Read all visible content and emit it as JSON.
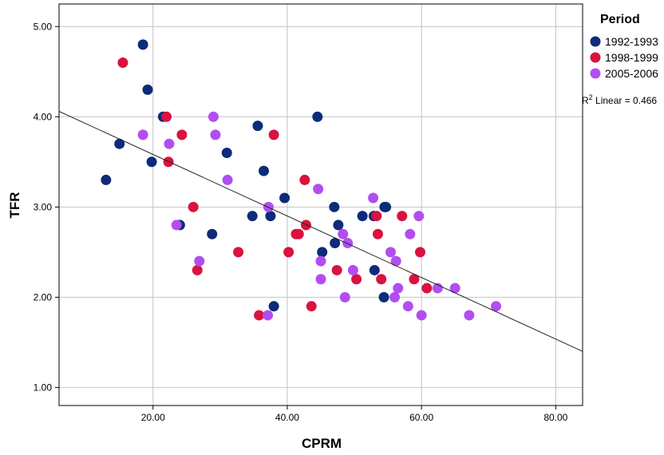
{
  "chart_data": {
    "type": "scatter",
    "xlabel": "CPRM",
    "ylabel": "TFR",
    "xlim": [
      6,
      84
    ],
    "ylim": [
      0.8,
      5.25
    ],
    "xticks": [
      "20.00",
      "40.00",
      "60.00",
      "80.00"
    ],
    "xtick_values": [
      20,
      40,
      60,
      80
    ],
    "yticks": [
      "1.00",
      "2.00",
      "3.00",
      "4.00",
      "5.00"
    ],
    "ytick_values": [
      1,
      2,
      3,
      4,
      5
    ],
    "grid": true,
    "legend": {
      "title": "Period",
      "placement": "right"
    },
    "fit": {
      "label_prefix": "R",
      "label_sup": "2",
      "label_suffix": " Linear = 0.466",
      "x0": 6,
      "y0": 4.06,
      "x1": 84,
      "y1": 1.4,
      "color": "#222222"
    },
    "series": [
      {
        "name": "1992-1993",
        "color": "#0d2b7a",
        "points": [
          [
            13,
            3.3
          ],
          [
            15,
            3.7
          ],
          [
            18.5,
            4.8
          ],
          [
            19.2,
            4.3
          ],
          [
            19.8,
            3.5
          ],
          [
            21.5,
            4.0
          ],
          [
            24,
            2.8
          ],
          [
            28.8,
            2.7
          ],
          [
            31,
            3.6
          ],
          [
            34.8,
            2.9
          ],
          [
            35.6,
            3.9
          ],
          [
            36.5,
            3.4
          ],
          [
            37.5,
            2.9
          ],
          [
            38,
            1.9
          ],
          [
            39.6,
            3.1
          ],
          [
            44.5,
            4.0
          ],
          [
            45.2,
            2.5
          ],
          [
            47,
            3.0
          ],
          [
            47.1,
            2.6
          ],
          [
            47.6,
            2.8
          ],
          [
            51.2,
            2.9
          ],
          [
            52.9,
            2.9
          ],
          [
            53,
            2.3
          ],
          [
            54.4,
            2.0
          ],
          [
            54.5,
            3.0
          ],
          [
            54.7,
            3.0
          ]
        ]
      },
      {
        "name": "1998-1999",
        "color": "#d8133f",
        "points": [
          [
            15.5,
            4.6
          ],
          [
            22,
            4.0
          ],
          [
            22.3,
            3.5
          ],
          [
            24.3,
            3.8
          ],
          [
            26,
            3.0
          ],
          [
            26.6,
            2.3
          ],
          [
            32.7,
            2.5
          ],
          [
            35.8,
            1.8
          ],
          [
            38,
            3.8
          ],
          [
            40.2,
            2.5
          ],
          [
            41.3,
            2.7
          ],
          [
            41.7,
            2.7
          ],
          [
            42.6,
            3.3
          ],
          [
            42.8,
            2.8
          ],
          [
            43.6,
            1.9
          ],
          [
            47.4,
            2.3
          ],
          [
            50.3,
            2.2
          ],
          [
            53.3,
            2.9
          ],
          [
            53.5,
            2.7
          ],
          [
            54,
            2.2
          ],
          [
            57.1,
            2.9
          ],
          [
            58.9,
            2.2
          ],
          [
            59.8,
            2.5
          ],
          [
            60.8,
            2.1
          ]
        ]
      },
      {
        "name": "2005-2006",
        "color": "#b14ef0",
        "points": [
          [
            18.5,
            3.8
          ],
          [
            22.4,
            3.7
          ],
          [
            23.5,
            2.8
          ],
          [
            26.9,
            2.4
          ],
          [
            29,
            4.0
          ],
          [
            29.3,
            3.8
          ],
          [
            31.1,
            3.3
          ],
          [
            37.2,
            3.0
          ],
          [
            37.1,
            1.8
          ],
          [
            44.6,
            3.2
          ],
          [
            45,
            2.4
          ],
          [
            45,
            2.2
          ],
          [
            48.3,
            2.7
          ],
          [
            48.6,
            2.0
          ],
          [
            49,
            2.6
          ],
          [
            49.8,
            2.3
          ],
          [
            52.8,
            3.1
          ],
          [
            55.4,
            2.5
          ],
          [
            56,
            2.0
          ],
          [
            56.2,
            2.4
          ],
          [
            56.5,
            2.1
          ],
          [
            58,
            1.9
          ],
          [
            58.3,
            2.7
          ],
          [
            59.6,
            2.9
          ],
          [
            60,
            1.8
          ],
          [
            62.4,
            2.1
          ],
          [
            65,
            2.1
          ],
          [
            67.1,
            1.8
          ],
          [
            71.1,
            1.9
          ]
        ]
      }
    ]
  }
}
